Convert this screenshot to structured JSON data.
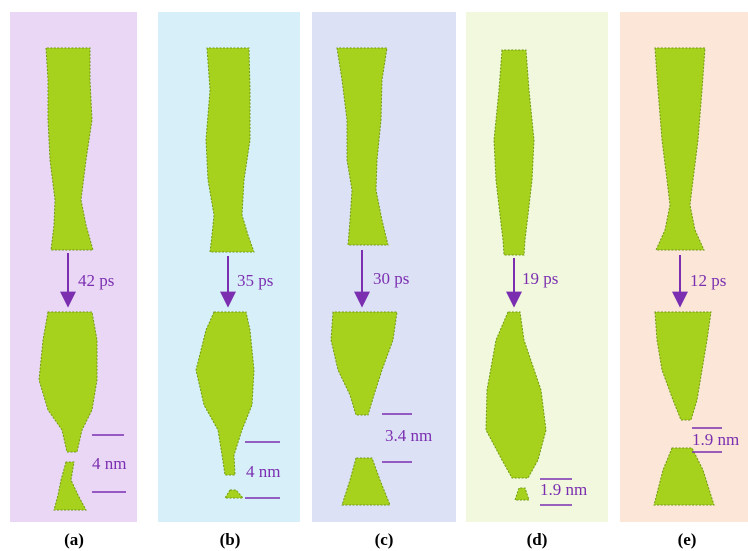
{
  "panels": [
    {
      "label": "(a)",
      "time": "42 ps",
      "gap": "4 nm"
    },
    {
      "label": "(b)",
      "time": "35 ps",
      "gap": "4 nm"
    },
    {
      "label": "(c)",
      "time": "30 ps",
      "gap": "3.4 nm"
    },
    {
      "label": "(d)",
      "time": "19 ps",
      "gap": "1.9 nm"
    },
    {
      "label": "(e)",
      "time": "12 ps",
      "gap": "1.9 nm"
    }
  ]
}
